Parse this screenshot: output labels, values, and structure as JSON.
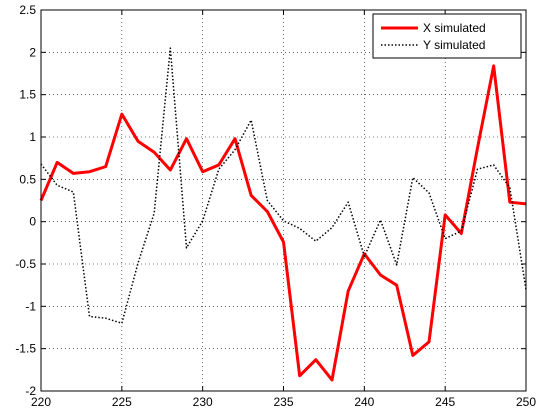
{
  "chart_data": {
    "type": "line",
    "title": "",
    "xlabel": "",
    "ylabel": "",
    "xlim": [
      220,
      250
    ],
    "ylim": [
      -2,
      2.5
    ],
    "xticks": [
      220,
      225,
      230,
      235,
      240,
      245,
      250
    ],
    "yticks": [
      2.5,
      2,
      1.5,
      1,
      0.5,
      0,
      -0.5,
      -1,
      -1.5,
      -2
    ],
    "grid": true,
    "legend_position": "top-right",
    "series": [
      {
        "name": "X simulated",
        "color": "#ff0000",
        "style": "solid",
        "x": [
          220,
          221,
          222,
          223,
          224,
          225,
          226,
          227,
          228,
          229,
          230,
          231,
          232,
          233,
          234,
          235,
          236,
          237,
          238,
          239,
          240,
          241,
          242,
          243,
          244,
          245,
          246,
          247,
          248,
          249,
          250
        ],
        "y": [
          0.25,
          0.7,
          0.57,
          0.59,
          0.65,
          1.27,
          0.95,
          0.82,
          0.61,
          0.98,
          0.59,
          0.67,
          0.98,
          0.31,
          0.12,
          -0.24,
          -1.82,
          -1.63,
          -1.87,
          -0.82,
          -0.38,
          -0.63,
          -0.75,
          -1.58,
          -1.42,
          0.08,
          -0.14,
          0.87,
          1.84,
          0.23,
          0.21
        ]
      },
      {
        "name": "Y simulated",
        "color": "#000000",
        "style": "dotted",
        "x": [
          220,
          221,
          222,
          223,
          224,
          225,
          226,
          227,
          228,
          229,
          230,
          231,
          232,
          233,
          234,
          235,
          236,
          237,
          238,
          239,
          240,
          241,
          242,
          243,
          244,
          245,
          246,
          247,
          248,
          249,
          250
        ],
        "y": [
          0.68,
          0.43,
          0.35,
          -1.12,
          -1.14,
          -1.2,
          -0.49,
          0.1,
          2.05,
          -0.31,
          0.01,
          0.62,
          0.85,
          1.2,
          0.25,
          0.01,
          -0.08,
          -0.23,
          -0.07,
          0.23,
          -0.41,
          0.02,
          -0.51,
          0.52,
          0.34,
          -0.2,
          -0.11,
          0.62,
          0.67,
          0.4,
          -0.8
        ]
      }
    ]
  }
}
